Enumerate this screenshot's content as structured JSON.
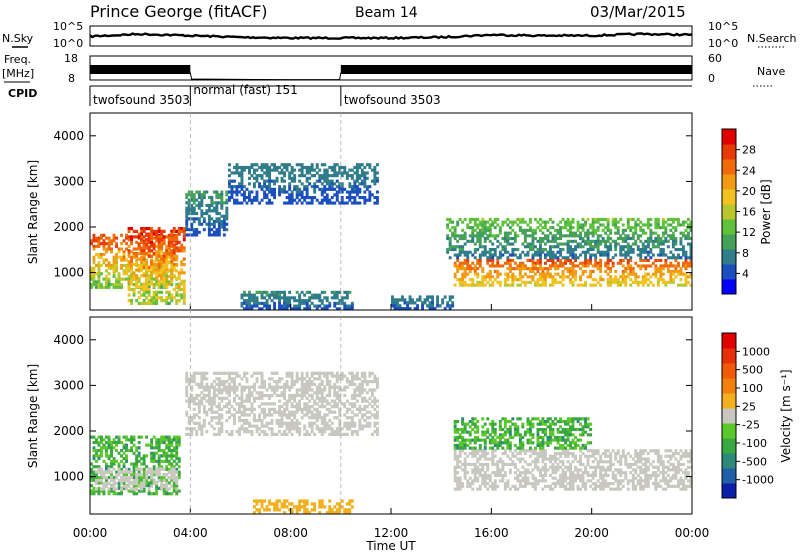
{
  "header": {
    "station": "Prince George (fitACF)",
    "beam": "Beam 14",
    "date": "03/Mar/2015"
  },
  "labels": {
    "nsky": "N.Sky",
    "nsearch": "N.Search",
    "freq": "Freq.",
    "mhz": "[MHz]",
    "nave": "Nave",
    "cpid": "CPID",
    "time_axis": "Time UT"
  },
  "colors": {
    "frame": "#000000",
    "guide_line": "#999999",
    "ground_scatter": "#c8c8c0"
  },
  "chart_data": [
    {
      "type": "line",
      "panel": "noise",
      "left_scale_ticks": [
        "10^5",
        "10^0"
      ],
      "right_scale_ticks": [
        "10^5",
        "10^0"
      ],
      "series": [
        {
          "name": "N.Sky",
          "x": [
            0,
            2,
            4,
            6,
            8,
            10,
            12,
            14,
            16,
            18,
            20,
            22,
            24
          ],
          "values": [
            1.2,
            1.5,
            1.3,
            1.1,
            1.0,
            1.0,
            1.0,
            1.1,
            1.4,
            1.3,
            1.3,
            1.5,
            1.4
          ]
        }
      ],
      "xlim": [
        0,
        24
      ]
    },
    {
      "type": "line",
      "panel": "frequency",
      "left_ticks": [
        "18",
        "8"
      ],
      "right_ticks": [
        "60",
        "0"
      ],
      "series": [
        {
          "name": "Freq.",
          "x": [
            0,
            4,
            4.05,
            6,
            8,
            9.95,
            10,
            24
          ],
          "values": [
            11.5,
            11.5,
            8.5,
            8.3,
            8.2,
            8.2,
            11.5,
            11.5
          ]
        }
      ],
      "xlim": [
        0,
        24
      ]
    },
    {
      "type": "table",
      "panel": "cpid",
      "segments": [
        {
          "label": "twofsound 3503",
          "start": 0,
          "end": 4
        },
        {
          "label": "normal (fast) 151",
          "start": 4,
          "end": 10
        },
        {
          "label": "twofsound 3503",
          "start": 10,
          "end": 24
        }
      ]
    },
    {
      "type": "heatmap",
      "panel": "power",
      "ylabel": "Slant Range [km]",
      "xlim": [
        0,
        24
      ],
      "ylim": [
        180,
        4500
      ],
      "y_ticks": [
        1000,
        2000,
        3000,
        4000
      ],
      "colorbar": {
        "label": "Power [dB]",
        "ticks": [
          "4",
          "8",
          "12",
          "16",
          "20",
          "24",
          "28"
        ],
        "range": [
          0,
          30
        ],
        "colors": [
          "#0000ff",
          "#1b4fc0",
          "#2f7d8a",
          "#45a05a",
          "#5fc23b",
          "#b9c62d",
          "#f2c220",
          "#f29b12",
          "#f06a0a",
          "#e83a05",
          "#e00000"
        ]
      },
      "bands": [
        {
          "t0": 0,
          "t1": 3.5,
          "r0": 650,
          "r1": 1850,
          "v0": 8,
          "v1": 28
        },
        {
          "t0": 1.5,
          "t1": 3.8,
          "r0": 300,
          "r1": 2000,
          "v0": 10,
          "v1": 30
        },
        {
          "t0": 3.8,
          "t1": 5.5,
          "r0": 1800,
          "r1": 2800,
          "v0": 3,
          "v1": 10
        },
        {
          "t0": 5.5,
          "t1": 11.5,
          "r0": 2500,
          "r1": 3400,
          "v0": 3,
          "v1": 8
        },
        {
          "t0": 6,
          "t1": 10.5,
          "r0": 180,
          "r1": 600,
          "v0": 3,
          "v1": 9
        },
        {
          "t0": 14.5,
          "t1": 24,
          "r0": 700,
          "r1": 1300,
          "v0": 14,
          "v1": 26
        },
        {
          "t0": 14.2,
          "t1": 24,
          "r0": 1300,
          "r1": 2200,
          "v0": 4,
          "v1": 14
        },
        {
          "t0": 12,
          "t1": 14.5,
          "r0": 180,
          "r1": 500,
          "v0": 3,
          "v1": 8
        }
      ]
    },
    {
      "type": "heatmap",
      "panel": "velocity",
      "ylabel": "Slant Range [km]",
      "xlim": [
        0,
        24
      ],
      "ylim": [
        180,
        4500
      ],
      "y_ticks": [
        1000,
        2000,
        3000,
        4000
      ],
      "x_ticks": [
        "00:00",
        "04:00",
        "08:00",
        "12:00",
        "16:00",
        "20:00",
        "00:00"
      ],
      "xlabel": "Time UT",
      "colorbar": {
        "label": "Velocity [m s⁻¹]",
        "ticks": [
          "1000",
          "500",
          "100",
          "25",
          "-25",
          "-100",
          "-500",
          "-1000"
        ],
        "range": [
          -1000,
          1000
        ],
        "colors": [
          "#0a1ea8",
          "#1f5fa8",
          "#2c8a78",
          "#3aa840",
          "#5ac82a",
          "#c8c8c0",
          "#f2b020",
          "#f28010",
          "#f05a08",
          "#e83008",
          "#e00000"
        ]
      },
      "bands": [
        {
          "t0": 0,
          "t1": 3.6,
          "r0": 600,
          "r1": 1900,
          "v0": -500,
          "v1": -100
        },
        {
          "t0": 0.2,
          "t1": 3.5,
          "r0": 700,
          "r1": 1200,
          "v0": -20,
          "v1": 20
        },
        {
          "t0": 3.8,
          "t1": 11.5,
          "r0": 1900,
          "r1": 3300,
          "v0": -20,
          "v1": 20
        },
        {
          "t0": 6.5,
          "t1": 10.5,
          "r0": 180,
          "r1": 500,
          "v0": 100,
          "v1": 200
        },
        {
          "t0": 14.5,
          "t1": 24,
          "r0": 700,
          "r1": 1600,
          "v0": -20,
          "v1": 20
        },
        {
          "t0": 14.5,
          "t1": 20,
          "r0": 1600,
          "r1": 2300,
          "v0": -500,
          "v1": -100
        }
      ]
    }
  ]
}
